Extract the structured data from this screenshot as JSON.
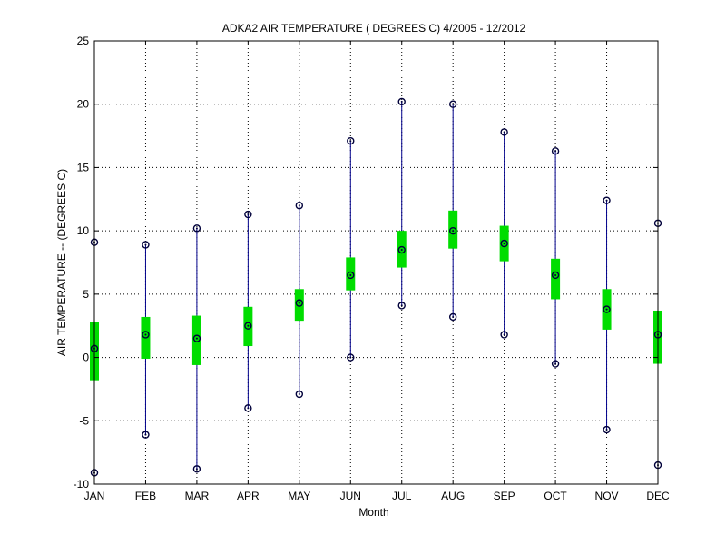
{
  "chart_data": {
    "type": "box",
    "title": "ADKA2  AIR TEMPERATURE ( DEGREES C) 4/2005 - 12/2012",
    "xlabel": "Month",
    "ylabel": "AIR TEMPERATURE -- (DEGREES C)",
    "categories": [
      "JAN",
      "FEB",
      "MAR",
      "APR",
      "MAY",
      "JUN",
      "JUL",
      "AUG",
      "SEP",
      "OCT",
      "NOV",
      "DEC"
    ],
    "ylim": [
      -10,
      25
    ],
    "yticks": [
      -10,
      -5,
      0,
      5,
      10,
      15,
      20,
      25
    ],
    "grid": true,
    "series": [
      {
        "max": [
          9.1,
          8.9,
          10.2,
          11.3,
          12.0,
          17.1,
          20.2,
          20.0,
          17.8,
          16.3,
          12.4,
          10.6
        ],
        "q3": [
          2.8,
          3.2,
          3.3,
          4.0,
          5.4,
          7.9,
          10.0,
          11.6,
          10.4,
          7.8,
          5.4,
          3.7
        ],
        "mean": [
          0.7,
          1.8,
          1.5,
          2.5,
          4.3,
          6.5,
          8.5,
          10.0,
          9.0,
          6.5,
          3.8,
          1.8
        ],
        "q1": [
          -1.8,
          -0.1,
          -0.6,
          0.9,
          2.9,
          5.3,
          7.1,
          8.6,
          7.6,
          4.6,
          2.2,
          -0.5
        ],
        "min": [
          -9.1,
          -6.1,
          -8.8,
          -4.0,
          -2.9,
          0.0,
          4.1,
          3.2,
          1.8,
          -0.5,
          -5.7,
          -8.5
        ]
      }
    ],
    "colors": {
      "whisker": "#00008b",
      "box": "#00dd00",
      "marker": "#00003a",
      "grid": "#000000"
    }
  }
}
